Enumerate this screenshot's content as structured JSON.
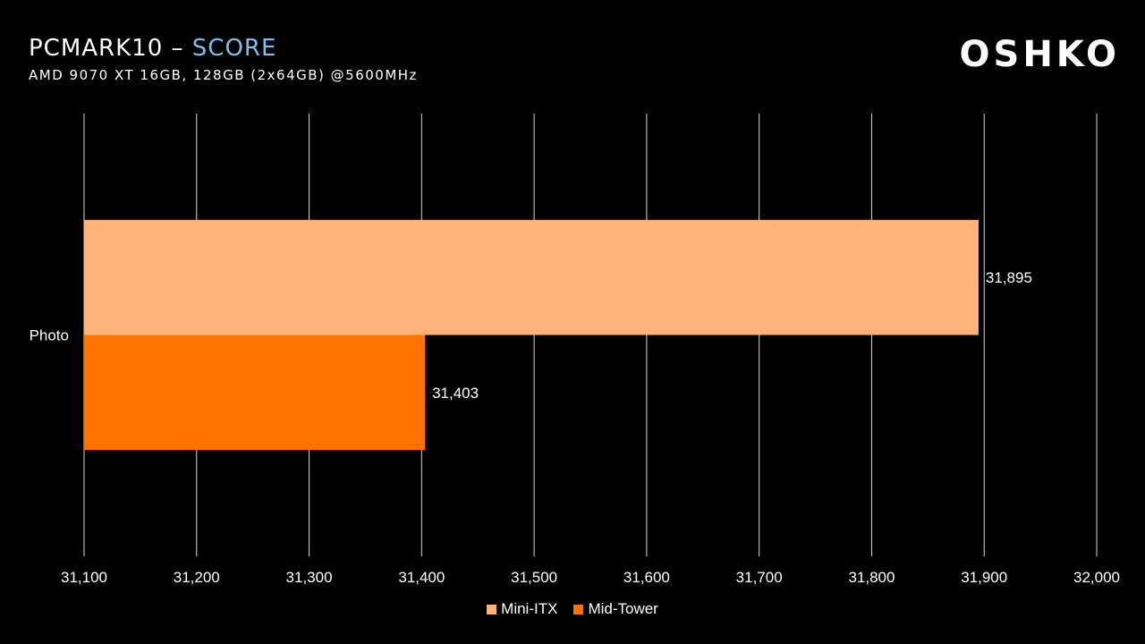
{
  "header": {
    "title_main": "PCMARK10 – ",
    "title_highlight": "SCORE",
    "subtitle": "AMD 9070 XT 16GB, 128GB (2x64GB) @5600MHz",
    "logo": "OSHKO"
  },
  "colors": {
    "background": "#000000",
    "title_highlight": "#7cc0ea",
    "gridline": "#d9d9d9"
  },
  "chart_data": {
    "type": "bar",
    "orientation": "horizontal",
    "categories": [
      "Photo"
    ],
    "series": [
      {
        "name": "Mini-ITX",
        "values": [
          31895
        ],
        "labels": [
          "31,895"
        ],
        "color": "#ffb27a"
      },
      {
        "name": "Mid-Tower",
        "values": [
          31403
        ],
        "labels": [
          "31,403"
        ],
        "color": "#fe7200"
      }
    ],
    "xlim": [
      31100,
      32000
    ],
    "xticks": [
      31100,
      31200,
      31300,
      31400,
      31500,
      31600,
      31700,
      31800,
      31900,
      32000
    ],
    "xtick_labels": [
      "31,100",
      "31,200",
      "31,300",
      "31,400",
      "31,500",
      "31,600",
      "31,700",
      "31,800",
      "31,900",
      "32,000"
    ],
    "grid": "vertical",
    "legend": "bottom"
  }
}
